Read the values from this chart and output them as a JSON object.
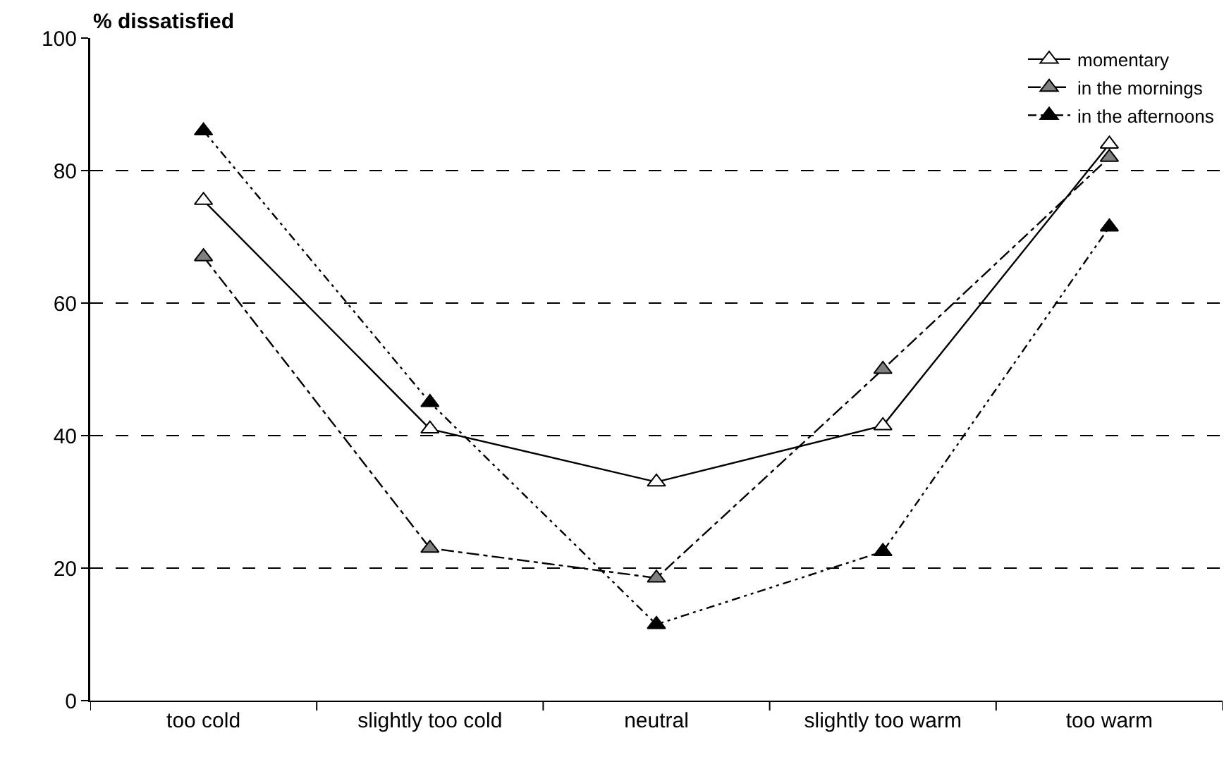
{
  "chart_data": {
    "type": "line",
    "ylabel": "% dissatisfied",
    "categories": [
      "too cold",
      "slightly too cold",
      "neutral",
      "slightly too warm",
      "too warm"
    ],
    "series": [
      {
        "name": "momentary",
        "color": "#ffffff",
        "line_style": "solid",
        "values": [
          75.5,
          41,
          33,
          41.5,
          84
        ]
      },
      {
        "name": "in the mornings",
        "color": "#808080",
        "line_style": "dashed",
        "values": [
          67,
          23,
          18.5,
          50,
          82
        ]
      },
      {
        "name": "in the afternoons",
        "color": "#000000",
        "line_style": "dotted",
        "values": [
          86,
          45,
          11.5,
          22.5,
          71.5
        ]
      }
    ],
    "ylim": [
      0,
      100
    ],
    "yticks": [
      0,
      20,
      40,
      60,
      80,
      100
    ],
    "grid": "y",
    "legend": "top right",
    "marker": "triangle"
  }
}
